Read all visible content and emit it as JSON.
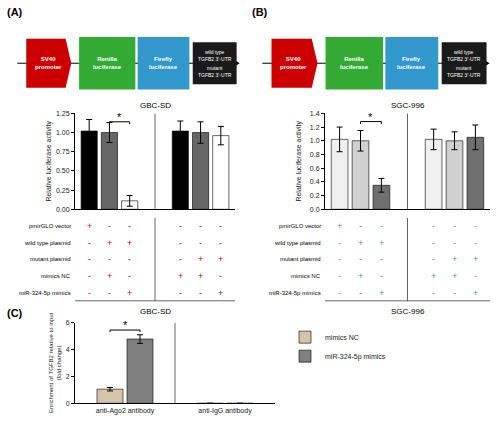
{
  "chart_data": [
    {
      "type": "bar",
      "label": "(A)",
      "title": "GBC-SD",
      "caption": "GBC-SD",
      "ylabel": "Relative luciferase activity",
      "categories": [
        null,
        null
      ],
      "series": [
        {
          "color": "#000000",
          "values": [
            1.02,
            1.02
          ],
          "errors": [
            0.15,
            0.13
          ]
        },
        {
          "color": "#666666",
          "values": [
            1.0,
            1.0
          ],
          "errors": [
            0.13,
            0.14
          ]
        },
        {
          "color": "#ffffff",
          "values": [
            0.11,
            0.96
          ],
          "errors": [
            0.07,
            0.12
          ]
        }
      ],
      "ylim": [
        0,
        1.25
      ],
      "yticks": [
        {
          "value": 0,
          "label": "0.00"
        },
        0.25,
        {
          "value": 0.5,
          "label": "0.50"
        },
        0.75,
        {
          "value": 1.0,
          "label": "1.00"
        },
        1.25
      ],
      "grid": false,
      "tick_labels": "y",
      "significance": {
        "category": 0,
        "series": [
          1,
          2
        ],
        "y": 1.14,
        "label": "*"
      },
      "table": {
        "rows": [
          "pmirGLO vector",
          "wild type plasmid",
          "mutant plasmid",
          "mimics NC",
          "miR-324-5p mimics"
        ],
        "columns": [
          [
            "+",
            "-",
            "-",
            "-",
            "-"
          ],
          [
            "-",
            "+",
            "-",
            "+",
            "-"
          ],
          [
            "-",
            "+",
            "-",
            "-",
            "+"
          ],
          [
            "-",
            "-",
            "-",
            "+",
            "-"
          ],
          [
            "-",
            "-",
            "+",
            "+",
            "-"
          ],
          [
            "-",
            "-",
            "+",
            "-",
            "+"
          ]
        ],
        "color": "#cc0000"
      },
      "diagram": [
        {
          "text": "SV40\npromoter",
          "color": "#cc0000"
        },
        {
          "text": "Renilla\nluciferase",
          "color": "#33aa33"
        },
        {
          "text": "Firefly\nluciferase",
          "color": "#3399cc"
        },
        {
          "texts": [
            "wild type\nTGFB2 3’-UTR",
            "mutant\nTGFB2 3’-UTR"
          ],
          "color": "#1a1a1a"
        }
      ]
    },
    {
      "type": "bar",
      "label": "(B)",
      "title": "SGC-996",
      "caption": "SGC-996",
      "ylabel": "Relative luciferase activity",
      "categories": [
        null,
        null
      ],
      "series": [
        {
          "color": "#f0f0f0",
          "values": [
            1.02,
            1.02
          ],
          "errors": [
            0.18,
            0.15
          ]
        },
        {
          "color": "#d0d0d0",
          "values": [
            1.0,
            1.0
          ],
          "errors": [
            0.15,
            0.13
          ]
        },
        {
          "color": "#707070",
          "values": [
            0.35,
            1.05
          ],
          "errors": [
            0.1,
            0.18
          ]
        }
      ],
      "ylim": [
        0,
        1.4
      ],
      "yticks": [
        {
          "value": 0,
          "label": "0.0"
        },
        0.2,
        0.4,
        0.6,
        0.8,
        {
          "value": 1.0,
          "label": "1.0"
        },
        1.2,
        1.4
      ],
      "grid": false,
      "tick_labels": "y",
      "significance": {
        "category": 0,
        "series": [
          1,
          2
        ],
        "y": 1.28,
        "label": "*"
      },
      "table": {
        "rows": [
          "pmirGLO vector",
          "wild type plasmid",
          "mutant plasmid",
          "mimics NC",
          "miR-324-5p mimics"
        ],
        "columns": [
          [
            "+",
            "-",
            "-",
            "-",
            "-"
          ],
          [
            "-",
            "+",
            "-",
            "+",
            "-"
          ],
          [
            "-",
            "+",
            "-",
            "-",
            "+"
          ],
          [
            "-",
            "-",
            "-",
            "+",
            "-"
          ],
          [
            "-",
            "-",
            "+",
            "+",
            "-"
          ],
          [
            "-",
            "-",
            "+",
            "-",
            "+"
          ]
        ],
        "color": "#3399cc"
      },
      "diagram": [
        {
          "text": "SV40\npromoter",
          "color": "#cc0000"
        },
        {
          "text": "Renilla\nluciferase",
          "color": "#33aa33"
        },
        {
          "text": "Firefly\nluciferase",
          "color": "#3399cc"
        },
        {
          "texts": [
            "wild type\nTGFB2 3’-UTR",
            "mutant\nTGFB2 3’-UTR"
          ],
          "color": "#1a1a1a"
        }
      ]
    },
    {
      "type": "bar",
      "label": "(C)",
      "ylabel": "Enrichment of TGFB2 relative to input\n(fold change)",
      "categories": [
        "anti-Ago2 antibody",
        "anti-IgG antibody"
      ],
      "series": [
        {
          "name": "mimics NC",
          "color": "#d4c5a9",
          "values": [
            1.05,
            0.0
          ],
          "errors": [
            0.13,
            0.0
          ]
        },
        {
          "name": "miR-324-5p mimics",
          "color": "#808080",
          "values": [
            4.78,
            0.0
          ],
          "errors": [
            0.32,
            0.0
          ]
        }
      ],
      "ylim": [
        0,
        6
      ],
      "yticks": [
        0,
        2,
        4,
        6
      ],
      "grid": false,
      "legend": "right",
      "significance": {
        "category": 0,
        "series": [
          0,
          1
        ],
        "y": 5.45,
        "label": "*"
      }
    }
  ]
}
